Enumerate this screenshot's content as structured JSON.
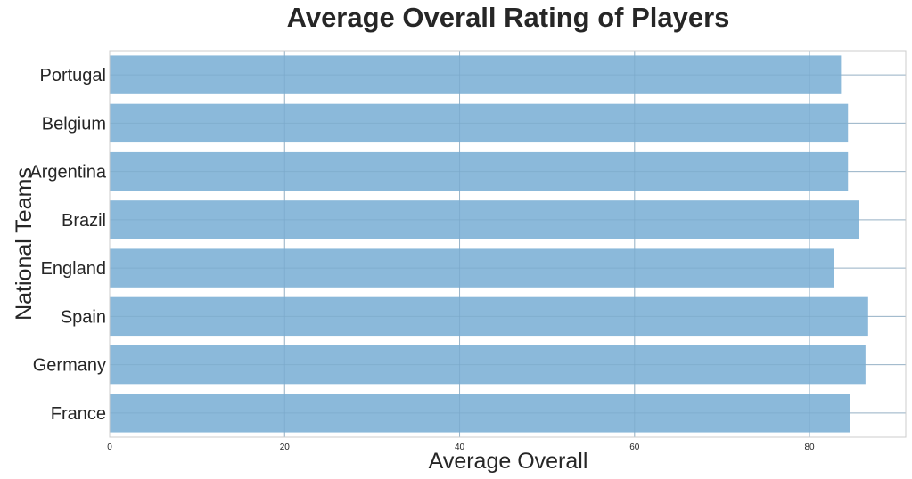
{
  "chart_data": {
    "type": "bar",
    "orientation": "horizontal",
    "title": "Average Overall Rating of Players",
    "xlabel": "Average Overall",
    "ylabel": "National Teams",
    "categories": [
      "France",
      "Germany",
      "Spain",
      "England",
      "Brazil",
      "Argentina",
      "Belgium",
      "Portugal"
    ],
    "values": [
      84.6,
      86.4,
      86.7,
      82.8,
      85.6,
      84.4,
      84.4,
      83.6
    ],
    "xlim": [
      0,
      91
    ],
    "x_ticks": [
      0,
      20,
      40,
      60,
      80
    ],
    "grid": true,
    "bar_color": "#8bb9da"
  }
}
